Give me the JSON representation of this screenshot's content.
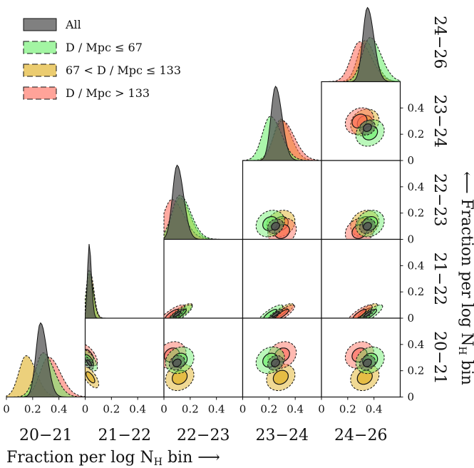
{
  "chart_data": {
    "type": "corner-plot",
    "title": "",
    "bins": [
      "20−21",
      "21−22",
      "22−23",
      "23−24",
      "24−26"
    ],
    "xlabel": "Fraction per log N",
    "xlabel_sub": "H",
    "xlabel_suffix": " bin ⟶",
    "ylabel_prefix": "⟵ Fraction per log N",
    "ylabel_sub": "H",
    "ylabel_suffix": " bin",
    "axis_range": [
      0,
      0.6
    ],
    "xticks": [
      "0",
      "0.2",
      "0.4"
    ],
    "yticks": [
      "0",
      "0.2",
      "0.4"
    ],
    "legend": {
      "placement": "top-left",
      "entries": [
        {
          "key": "all",
          "label": "All"
        },
        {
          "key": "near",
          "label": "D / Mpc ≤ 67"
        },
        {
          "key": "mid",
          "label": "67 < D / Mpc ≤ 133"
        },
        {
          "key": "far",
          "label": "D / Mpc > 133"
        }
      ]
    },
    "series": [
      {
        "key": "all",
        "name": "All",
        "color": "#555555",
        "means": [
          0.26,
          0.03,
          0.1,
          0.25,
          0.35
        ]
      },
      {
        "key": "near",
        "name": "D / Mpc ≤ 67",
        "color": "#66ee66",
        "means": [
          0.28,
          0.03,
          0.12,
          0.21,
          0.37
        ]
      },
      {
        "key": "mid",
        "name": "67 < D / Mpc ≤ 133",
        "color": "#ddaa11",
        "means": [
          0.15,
          0.04,
          0.12,
          0.29,
          0.33
        ]
      },
      {
        "key": "far",
        "name": "D / Mpc > 133",
        "color": "#ff6655",
        "means": [
          0.32,
          0.03,
          0.06,
          0.3,
          0.29
        ]
      }
    ],
    "grid": false
  }
}
